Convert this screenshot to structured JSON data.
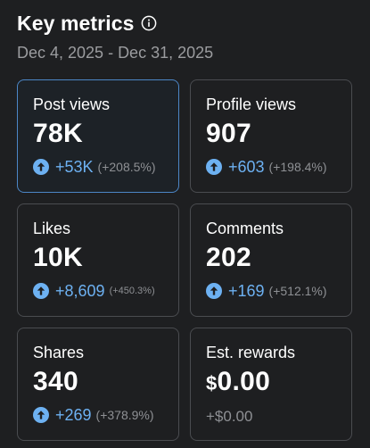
{
  "header": {
    "title": "Key metrics",
    "date_range": "Dec 4, 2025 - Dec 31, 2025"
  },
  "metrics": [
    {
      "label": "Post views",
      "value": "78K",
      "delta": "+53K",
      "pct": "(+208.5%)"
    },
    {
      "label": "Profile views",
      "value": "907",
      "delta": "+603",
      "pct": "(+198.4%)"
    },
    {
      "label": "Likes",
      "value": "10K",
      "delta": "+8,609",
      "pct": "(+450.3%)"
    },
    {
      "label": "Comments",
      "value": "202",
      "delta": "+169",
      "pct": "(+512.1%)"
    },
    {
      "label": "Shares",
      "value": "340",
      "delta": "+269",
      "pct": "(+378.9%)"
    },
    {
      "label": "Est. rewards",
      "currency": "$",
      "value": "0.00",
      "delta": "+$0.00"
    }
  ],
  "colors": {
    "background": "#1e1f21",
    "accent": "#6db1f2",
    "selected_border": "#4c86c6",
    "muted": "#8e9094"
  }
}
